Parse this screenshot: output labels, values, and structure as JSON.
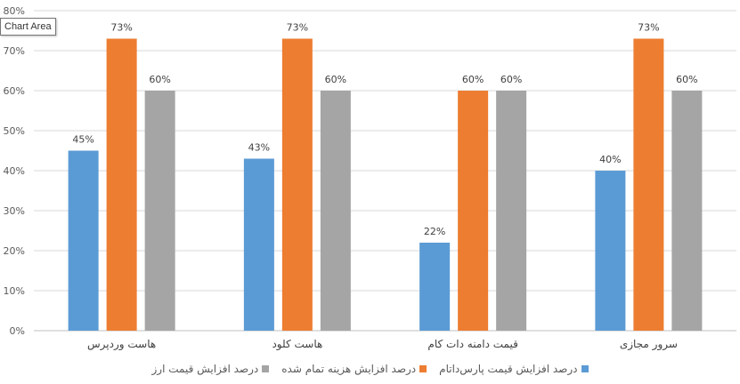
{
  "tooltip": "Chart Area",
  "chart_data": {
    "type": "bar",
    "categories": [
      "هاست وردپرس",
      "هاست کلود",
      "قیمت دامنه دات کام",
      "سرور مجازی"
    ],
    "series": [
      {
        "name": "درصد افزایش قیمت پارس‌داتام",
        "values": [
          45,
          43,
          22,
          40
        ],
        "color": "#5B9BD5"
      },
      {
        "name": "درصد افزایش هزینه تمام شده",
        "values": [
          73,
          73,
          60,
          73
        ],
        "color": "#ED7D31"
      },
      {
        "name": "درصد افزایش قیمت ارز",
        "values": [
          60,
          60,
          60,
          60
        ],
        "color": "#A5A5A5"
      }
    ],
    "ylim": [
      0,
      80
    ],
    "yticks": [
      0,
      10,
      20,
      30,
      40,
      50,
      60,
      70,
      80
    ],
    "value_suffix": "%",
    "grid": true,
    "legend": "bottom",
    "title": "",
    "xlabel": "",
    "ylabel": ""
  }
}
